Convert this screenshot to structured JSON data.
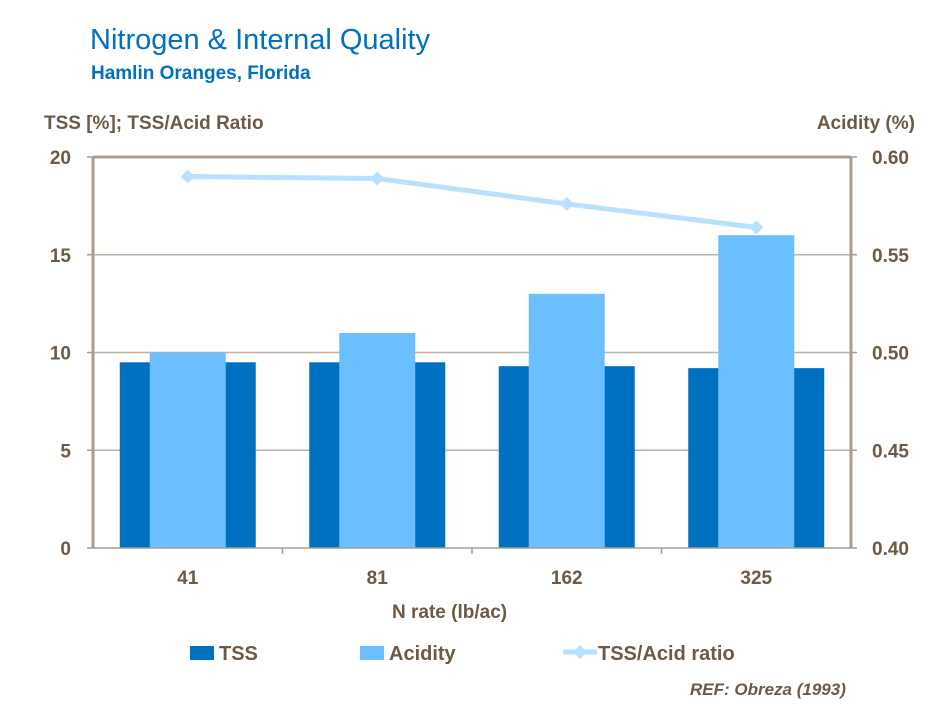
{
  "chart_data": {
    "type": "bar",
    "title": "Nitrogen & Internal Quality",
    "subtitle": "Hamlin Oranges, Florida",
    "xlabel": "N rate (lb/ac)",
    "ylabel": "TSS [%];  TSS/Acid Ratio",
    "y2label": "Acidity (%)",
    "categories": [
      "41",
      "81",
      "162",
      "325"
    ],
    "ylim": [
      0,
      20
    ],
    "y2lim": [
      0.4,
      0.6
    ],
    "yticks": [
      "0",
      "5",
      "10",
      "15",
      "20"
    ],
    "y2ticks": [
      "0.40",
      "0.45",
      "0.50",
      "0.55",
      "0.60"
    ],
    "grid": true,
    "legend_position": "bottom",
    "series": [
      {
        "name": "TSS",
        "type": "bar",
        "axis": "left",
        "color": "#0070C0",
        "values": [
          9.5,
          9.5,
          9.3,
          9.2
        ]
      },
      {
        "name": "Acidity",
        "type": "bar",
        "axis": "right",
        "color": "#6BBFFF",
        "values": [
          0.5,
          0.51,
          0.53,
          0.56
        ]
      },
      {
        "name": "TSS/Acid ratio",
        "type": "line",
        "axis": "left",
        "color": "#B8E0FF",
        "values": [
          19.0,
          18.9,
          17.6,
          16.4
        ]
      }
    ]
  },
  "reference": "REF: Obreza (1993)"
}
